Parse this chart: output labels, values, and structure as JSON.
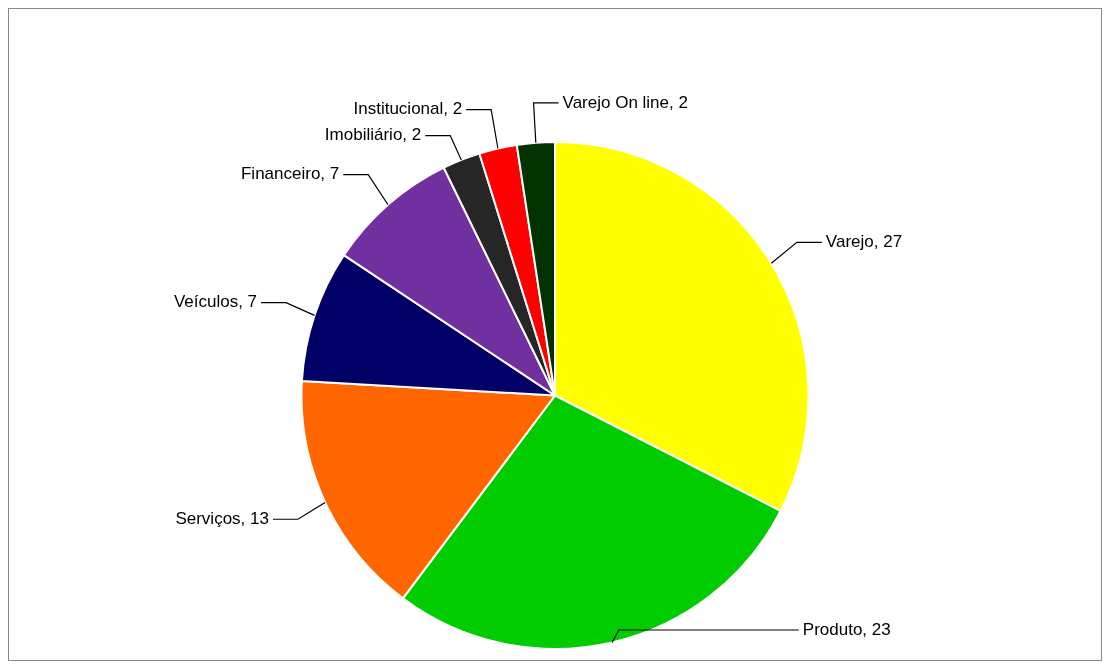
{
  "chart_data": {
    "type": "pie",
    "categories": [
      "Varejo",
      "Produto",
      "Serviços",
      "Veículos",
      "Financeiro",
      "Imobiliário",
      "Institucional",
      "Varejo On line"
    ],
    "values": [
      27,
      23,
      13,
      7,
      7,
      2,
      2,
      2
    ],
    "colors": [
      "#ffff00",
      "#00cc00",
      "#ff6600",
      "#000066",
      "#7030a0",
      "#262626",
      "#ff0000",
      "#003300"
    ],
    "value_labels": [
      ", 27",
      ", 23",
      ", 13",
      ", 7",
      ", 7",
      ", 2",
      ", 2",
      ", 2"
    ],
    "legend": false
  }
}
